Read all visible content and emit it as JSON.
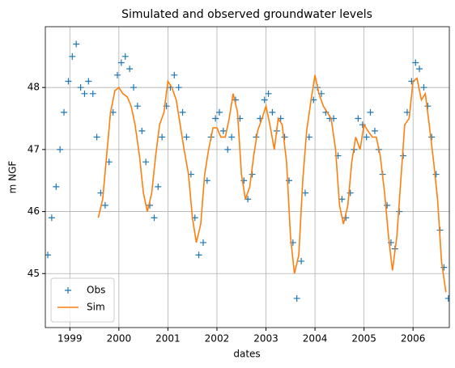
{
  "chart_data": {
    "type": "line",
    "title": "Simulated and observed groundwater levels",
    "x_label": "dates",
    "y_label": "m NGF",
    "xlim": [
      1998.5,
      2006.74
    ],
    "xticks": [
      1999,
      2000,
      2001,
      2002,
      2003,
      2004,
      2005,
      2006
    ],
    "ylim": [
      44.13,
      48.98
    ],
    "yticks": [
      45,
      46,
      47,
      48
    ],
    "grid": true,
    "legend": "lower left",
    "series": [
      {
        "name": "Obs",
        "color": "#1f77b4",
        "marker": "+",
        "x": [
          1998.55,
          1998.63,
          1998.72,
          1998.8,
          1998.88,
          1998.97,
          1999.05,
          1999.13,
          1999.22,
          1999.3,
          1999.38,
          1999.47,
          1999.55,
          1999.63,
          1999.72,
          1999.8,
          1999.88,
          1999.97,
          2000.05,
          2000.13,
          2000.22,
          2000.3,
          2000.38,
          2000.47,
          2000.55,
          2000.63,
          2000.72,
          2000.8,
          2000.88,
          2000.97,
          2001.05,
          2001.13,
          2001.22,
          2001.3,
          2001.38,
          2001.47,
          2001.55,
          2001.63,
          2001.72,
          2001.8,
          2001.88,
          2001.97,
          2002.05,
          2002.13,
          2002.22,
          2002.3,
          2002.38,
          2002.47,
          2002.55,
          2002.63,
          2002.72,
          2002.8,
          2002.88,
          2002.97,
          2003.05,
          2003.13,
          2003.22,
          2003.3,
          2003.38,
          2003.47,
          2003.55,
          2003.63,
          2003.72,
          2003.8,
          2003.88,
          2003.97,
          2004.05,
          2004.13,
          2004.22,
          2004.3,
          2004.38,
          2004.47,
          2004.55,
          2004.63,
          2004.72,
          2004.8,
          2004.88,
          2004.97,
          2005.05,
          2005.13,
          2005.22,
          2005.3,
          2005.38,
          2005.47,
          2005.55,
          2005.63,
          2005.72,
          2005.8,
          2005.88,
          2005.97,
          2006.05,
          2006.13,
          2006.22,
          2006.3,
          2006.38,
          2006.47,
          2006.55,
          2006.63,
          2006.72
        ],
        "values": [
          45.3,
          45.9,
          46.4,
          47.0,
          47.6,
          48.1,
          48.5,
          48.7,
          48.0,
          47.9,
          48.1,
          47.9,
          47.2,
          46.3,
          46.1,
          46.8,
          47.6,
          48.2,
          48.4,
          48.5,
          48.3,
          48.0,
          47.7,
          47.3,
          46.8,
          46.1,
          45.9,
          46.4,
          47.2,
          47.7,
          48.0,
          48.2,
          48.0,
          47.6,
          47.2,
          46.6,
          45.9,
          45.3,
          45.5,
          46.5,
          47.2,
          47.5,
          47.6,
          47.3,
          47.0,
          47.2,
          47.8,
          47.5,
          46.5,
          46.2,
          46.6,
          47.2,
          47.5,
          47.8,
          47.9,
          47.6,
          47.3,
          47.5,
          47.2,
          46.5,
          45.5,
          44.6,
          45.2,
          46.3,
          47.2,
          47.8,
          48.0,
          47.9,
          47.6,
          47.5,
          47.5,
          46.9,
          46.2,
          45.9,
          46.3,
          47.0,
          47.5,
          47.4,
          47.2,
          47.6,
          47.3,
          47.0,
          46.6,
          46.1,
          45.5,
          45.4,
          46.0,
          46.9,
          47.6,
          48.1,
          48.4,
          48.3,
          48.0,
          47.7,
          47.2,
          46.6,
          45.7,
          45.1,
          44.6
        ]
      },
      {
        "name": "Sim",
        "color": "#ff7f0e",
        "x": [
          1999.58,
          1999.67,
          1999.75,
          1999.83,
          1999.92,
          2000.0,
          2000.08,
          2000.17,
          2000.25,
          2000.33,
          2000.42,
          2000.5,
          2000.58,
          2000.67,
          2000.75,
          2000.83,
          2000.92,
          2001.0,
          2001.08,
          2001.17,
          2001.25,
          2001.33,
          2001.42,
          2001.5,
          2001.58,
          2001.67,
          2001.75,
          2001.83,
          2001.92,
          2002.0,
          2002.08,
          2002.17,
          2002.25,
          2002.33,
          2002.42,
          2002.5,
          2002.58,
          2002.67,
          2002.75,
          2002.83,
          2002.92,
          2003.0,
          2003.08,
          2003.17,
          2003.25,
          2003.33,
          2003.42,
          2003.5,
          2003.58,
          2003.67,
          2003.75,
          2003.83,
          2003.92,
          2004.0,
          2004.08,
          2004.17,
          2004.25,
          2004.33,
          2004.42,
          2004.5,
          2004.58,
          2004.67,
          2004.75,
          2004.83,
          2004.92,
          2005.0,
          2005.08,
          2005.17,
          2005.25,
          2005.33,
          2005.42,
          2005.5,
          2005.58,
          2005.67,
          2005.75,
          2005.83,
          2005.92,
          2006.0,
          2006.08,
          2006.17,
          2006.25,
          2006.33,
          2006.42,
          2006.5,
          2006.58,
          2006.67
        ],
        "values": [
          45.9,
          46.2,
          46.9,
          47.6,
          47.95,
          48.0,
          47.9,
          47.85,
          47.7,
          47.4,
          46.9,
          46.3,
          46.0,
          46.3,
          46.9,
          47.4,
          47.6,
          48.1,
          48.0,
          47.8,
          47.4,
          47.0,
          46.6,
          45.9,
          45.5,
          45.8,
          46.6,
          47.0,
          47.35,
          47.35,
          47.2,
          47.2,
          47.5,
          47.9,
          47.6,
          46.6,
          46.2,
          46.4,
          46.9,
          47.3,
          47.5,
          47.7,
          47.4,
          47.0,
          47.5,
          47.4,
          46.8,
          45.6,
          45.0,
          45.3,
          46.5,
          47.3,
          47.8,
          48.2,
          47.9,
          47.7,
          47.6,
          47.5,
          47.0,
          46.1,
          45.8,
          46.1,
          46.8,
          47.2,
          47.0,
          47.4,
          47.3,
          47.2,
          47.2,
          46.9,
          46.3,
          45.6,
          45.05,
          45.6,
          46.5,
          47.4,
          47.5,
          48.1,
          48.15,
          47.8,
          47.9,
          47.4,
          46.8,
          46.2,
          45.2,
          44.7
        ]
      }
    ]
  }
}
